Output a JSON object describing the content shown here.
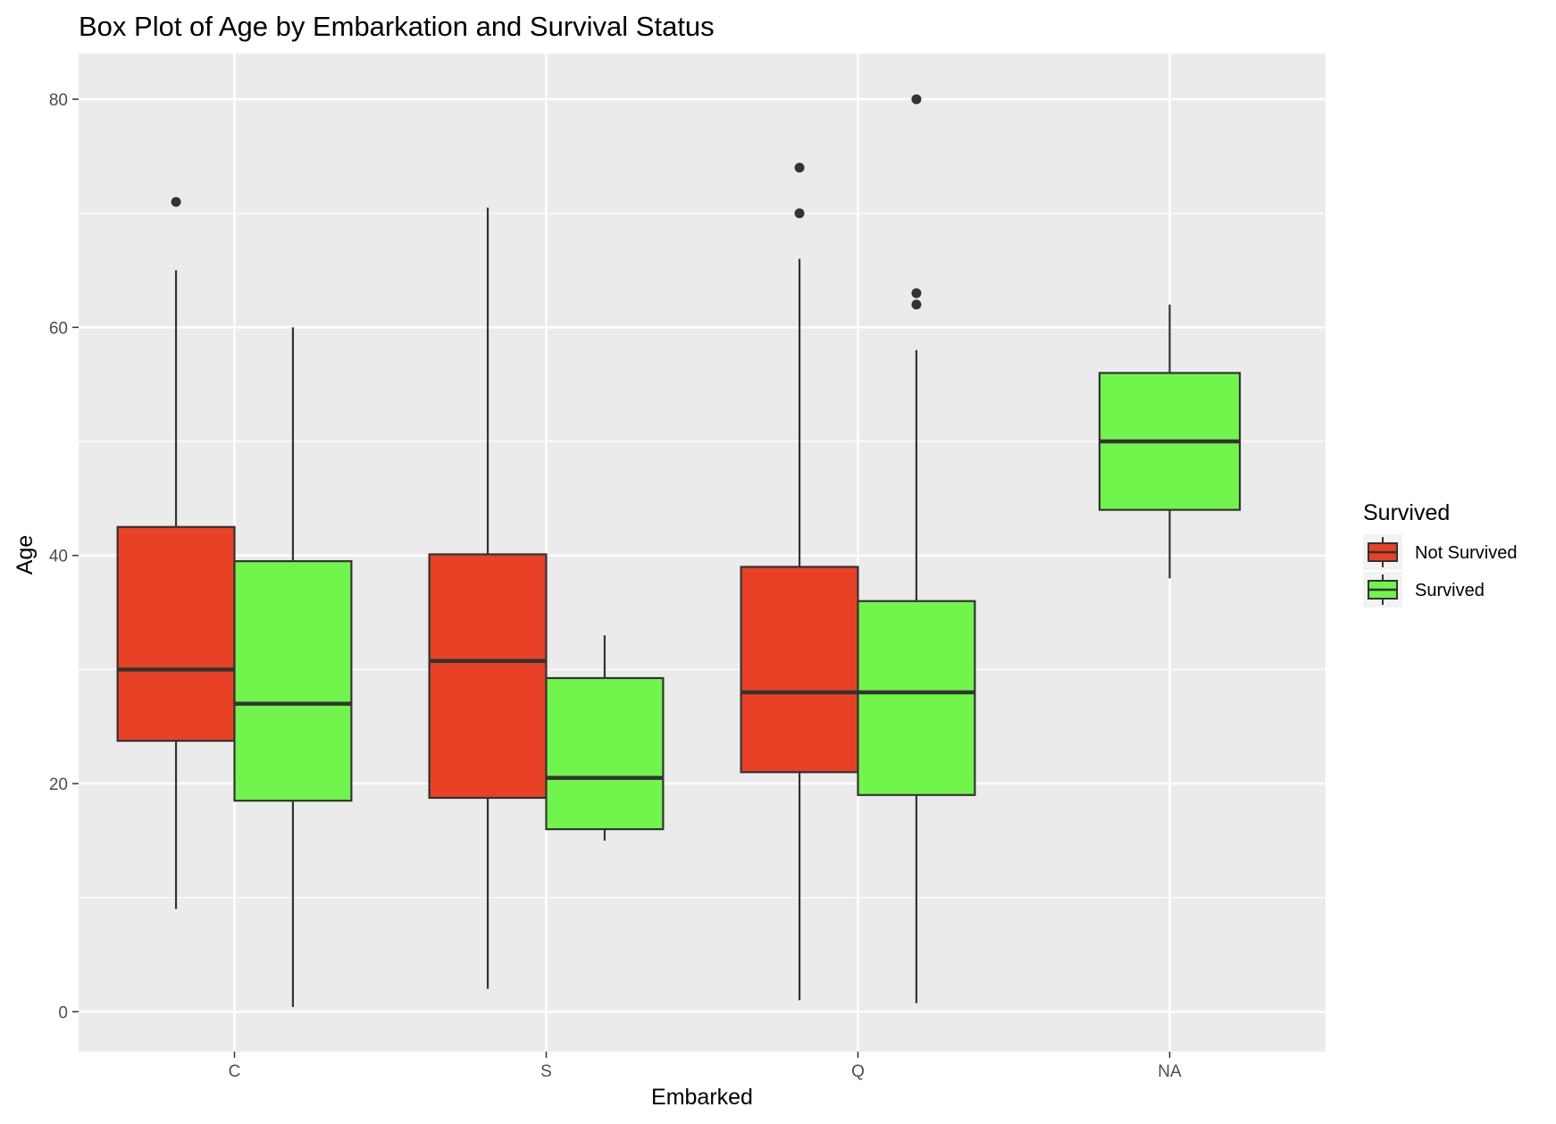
{
  "chart_data": {
    "type": "box",
    "title": "Box Plot of Age by Embarkation and Survival Status",
    "xlabel": "Embarked",
    "ylabel": "Age",
    "ylim": [
      -3.5,
      84
    ],
    "yticks": [
      0,
      20,
      40,
      60,
      80
    ],
    "categories": [
      "C",
      "S",
      "Q",
      "NA"
    ],
    "legend": {
      "title": "Survived",
      "placement": "right",
      "entries": [
        {
          "name": "Not Survived",
          "color": "#e84126"
        },
        {
          "name": "Survived",
          "color": "#71f54c"
        }
      ]
    },
    "grid": true,
    "series": [
      {
        "name": "Not Survived",
        "color": "#e84126",
        "boxes": [
          {
            "category": "C",
            "min": 9,
            "q1": 23.75,
            "median": 30,
            "q3": 42.5,
            "max": 65,
            "outliers": [
              71
            ]
          },
          {
            "category": "S",
            "min": 2,
            "q1": 18.75,
            "median": 30.75,
            "q3": 40.1,
            "max": 70.5,
            "outliers": []
          },
          {
            "category": "Q",
            "min": 1,
            "q1": 21,
            "median": 28,
            "q3": 39,
            "max": 66,
            "outliers": [
              70,
              74
            ]
          }
        ]
      },
      {
        "name": "Survived",
        "color": "#71f54c",
        "boxes": [
          {
            "category": "C",
            "min": 0.42,
            "q1": 18.5,
            "median": 27,
            "q3": 39.5,
            "max": 60,
            "outliers": []
          },
          {
            "category": "S",
            "min": 15,
            "q1": 16,
            "median": 20.5,
            "q3": 29.25,
            "max": 33,
            "outliers": []
          },
          {
            "category": "Q",
            "min": 0.75,
            "q1": 19,
            "median": 28,
            "q3": 36,
            "max": 58,
            "outliers": [
              62,
              63,
              80
            ]
          },
          {
            "category": "NA",
            "min": 38,
            "q1": 44,
            "median": 50,
            "q3": 56,
            "max": 62,
            "outliers": []
          }
        ]
      }
    ]
  }
}
